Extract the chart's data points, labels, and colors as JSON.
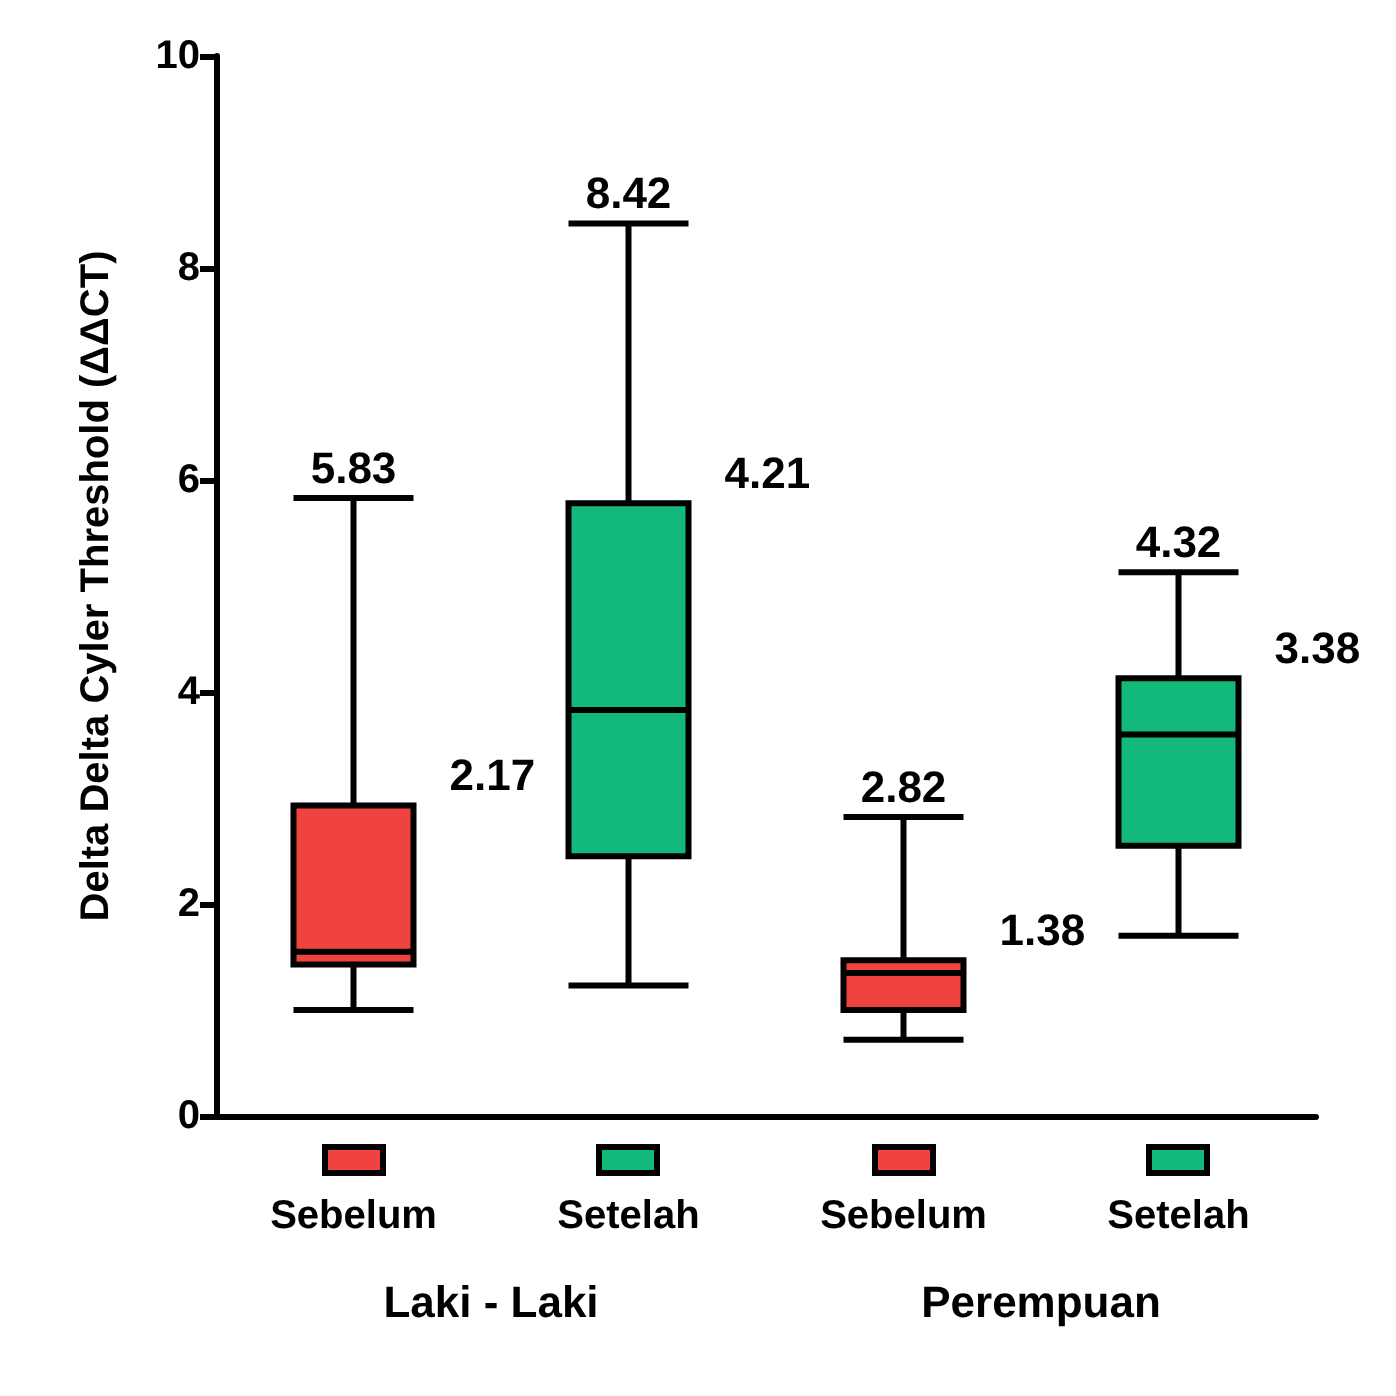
{
  "chart_data": {
    "type": "box",
    "ylabel": "Delta Delta Cyler Threshold (ΔΔCT)",
    "categories": [
      "Sebelum",
      "Setelah",
      "Sebelum",
      "Setelah"
    ],
    "colors": [
      "#f0433f",
      "#13b97b",
      "#f0433f",
      "#13b97b"
    ],
    "boxes": [
      {
        "low": 1.0,
        "q1": 1.43,
        "median": 1.55,
        "q3": 2.93,
        "high": 5.83
      },
      {
        "low": 1.23,
        "q1": 2.45,
        "median": 3.83,
        "q3": 5.78,
        "high": 8.42
      },
      {
        "low": 0.72,
        "q1": 1.0,
        "median": 1.35,
        "q3": 1.47,
        "high": 2.82
      },
      {
        "low": 1.7,
        "q1": 2.55,
        "median": 3.6,
        "q3": 4.13,
        "high": 5.13
      }
    ],
    "ylim": [
      0,
      10
    ],
    "yticks": [
      0,
      2,
      4,
      6,
      8,
      10
    ],
    "grid": false,
    "annotations": [
      "5.83",
      "2.17",
      "8.42",
      "4.21",
      "2.82",
      "1.38",
      "4.32",
      "3.38",
      "Laki - Laki",
      "Perempuan"
    ]
  }
}
